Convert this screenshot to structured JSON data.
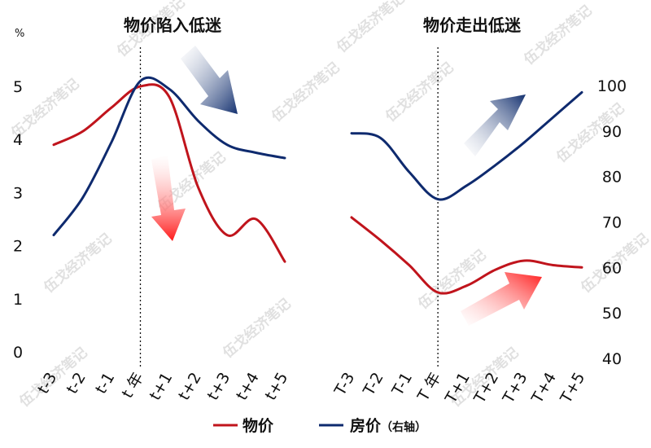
{
  "chart_data": [
    {
      "type": "line",
      "title": "物价陷入低迷",
      "ylabel_unit": "%",
      "ylim": [
        0,
        5
      ],
      "yticks": [
        "0",
        "1",
        "2",
        "3",
        "4",
        "5"
      ],
      "categories": [
        "t-3",
        "t-2",
        "t-1",
        "t 年",
        "t+1",
        "t+2",
        "t+3",
        "t+4",
        "t+5"
      ],
      "marker_category": "t 年",
      "series": [
        {
          "name": "物价",
          "color": "#c0141c",
          "axis": "left",
          "values": [
            3.9,
            4.15,
            4.6,
            5.0,
            4.8,
            3.1,
            2.2,
            2.5,
            1.7
          ]
        },
        {
          "name": "房价",
          "color": "#0e2a6e",
          "axis": "left",
          "values": [
            2.2,
            2.9,
            3.95,
            5.1,
            4.95,
            4.35,
            3.9,
            3.75,
            3.65
          ]
        }
      ]
    },
    {
      "type": "line",
      "title": "物价走出低迷",
      "y2lim": [
        40,
        100
      ],
      "y2ticks": [
        "40",
        "50",
        "60",
        "70",
        "80",
        "90",
        "100"
      ],
      "categories": [
        "T-3",
        "T-2",
        "T-1",
        "T 年",
        "T+1",
        "T+2",
        "T+3",
        "T+4",
        "T+5"
      ],
      "marker_category": "T 年",
      "series": [
        {
          "name": "物价",
          "color": "#c0141c",
          "axis": "right",
          "values": [
            71,
            66,
            60.5,
            54.5,
            56,
            59.5,
            61.5,
            60.5,
            60
          ]
        },
        {
          "name": "房价",
          "color": "#0e2a6e",
          "axis": "right",
          "values": [
            89.5,
            88.5,
            81,
            75,
            78,
            82.5,
            87.5,
            93,
            98.5
          ]
        }
      ]
    }
  ],
  "legend": {
    "items": [
      {
        "label": "物价",
        "color": "#c0141c"
      },
      {
        "label": "房价",
        "color": "#0e2a6e",
        "note": "（右轴）"
      }
    ]
  },
  "watermark": "伍戈经济笔记",
  "arrows": [
    {
      "color": "navy",
      "direction": "down-right"
    },
    {
      "color": "red",
      "direction": "down"
    },
    {
      "color": "navy",
      "direction": "up-right"
    },
    {
      "color": "red",
      "direction": "up-right"
    }
  ]
}
